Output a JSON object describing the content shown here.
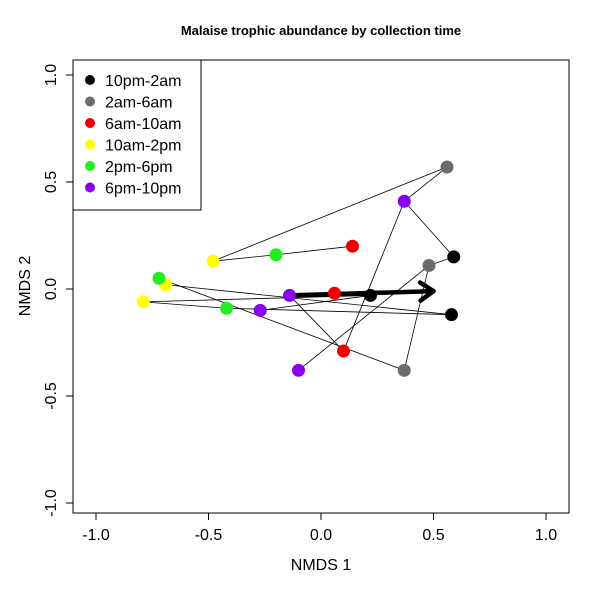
{
  "chart_data": {
    "type": "scatter",
    "title": "Malaise trophic abundance by collection time",
    "xlabel": "NMDS 1",
    "ylabel": "NMDS 2",
    "xlim": [
      -1.0,
      1.0
    ],
    "ylim": [
      -1.0,
      1.0
    ],
    "xticks": [
      -1.0,
      -0.5,
      0.0,
      0.5,
      1.0
    ],
    "yticks": [
      -1.0,
      -0.5,
      0.0,
      0.5,
      1.0
    ],
    "xtick_labels": [
      "-1.0",
      "-0.5",
      "0.0",
      "0.5",
      "1.0"
    ],
    "ytick_labels": [
      "-1.0",
      "-0.5",
      "0.0",
      "0.5",
      "1.0"
    ],
    "grid": false,
    "legend_position": "top-left",
    "series": [
      {
        "name": "10pm-2am",
        "color": "#000000",
        "points": [
          [
            0.59,
            0.15
          ],
          [
            0.58,
            -0.12
          ],
          [
            0.22,
            -0.03
          ]
        ]
      },
      {
        "name": "2am-6am",
        "color": "#6b6b6b",
        "points": [
          [
            0.56,
            0.57
          ],
          [
            0.48,
            0.11
          ],
          [
            0.37,
            -0.38
          ]
        ]
      },
      {
        "name": "6am-10am",
        "color": "#ee0000",
        "points": [
          [
            0.14,
            0.2
          ],
          [
            0.06,
            -0.02
          ],
          [
            0.1,
            -0.29
          ]
        ]
      },
      {
        "name": "10am-2pm",
        "color": "#ffff00",
        "points": [
          [
            -0.48,
            0.13
          ],
          [
            -0.69,
            0.02
          ],
          [
            -0.79,
            -0.06
          ]
        ]
      },
      {
        "name": "2pm-6pm",
        "color": "#22ee22",
        "points": [
          [
            -0.2,
            0.16
          ],
          [
            -0.72,
            0.05
          ],
          [
            -0.42,
            -0.09
          ]
        ]
      },
      {
        "name": "6pm-10pm",
        "color": "#8800ee",
        "points": [
          [
            0.37,
            0.41
          ],
          [
            -0.14,
            -0.03
          ],
          [
            -0.27,
            -0.1
          ],
          [
            -0.1,
            -0.38
          ]
        ]
      }
    ],
    "connections": [
      [
        [
          -0.48,
          0.13
        ],
        [
          -0.2,
          0.16
        ]
      ],
      [
        [
          -0.2,
          0.16
        ],
        [
          0.14,
          0.2
        ]
      ],
      [
        [
          -0.48,
          0.13
        ],
        [
          0.56,
          0.57
        ]
      ],
      [
        [
          0.56,
          0.57
        ],
        [
          0.37,
          0.41
        ]
      ],
      [
        [
          0.37,
          0.41
        ],
        [
          0.59,
          0.15
        ]
      ],
      [
        [
          0.59,
          0.15
        ],
        [
          0.48,
          0.11
        ]
      ],
      [
        [
          0.48,
          0.11
        ],
        [
          0.37,
          -0.38
        ]
      ],
      [
        [
          0.37,
          -0.38
        ],
        [
          -0.72,
          0.05
        ]
      ],
      [
        [
          -0.72,
          0.05
        ],
        [
          -0.69,
          0.02
        ]
      ],
      [
        [
          -0.69,
          0.02
        ],
        [
          0.58,
          -0.12
        ]
      ],
      [
        [
          0.58,
          -0.12
        ],
        [
          -0.42,
          -0.09
        ]
      ],
      [
        [
          -0.42,
          -0.09
        ],
        [
          -0.79,
          -0.06
        ]
      ],
      [
        [
          -0.79,
          -0.06
        ],
        [
          0.22,
          -0.03
        ]
      ],
      [
        [
          0.22,
          -0.03
        ],
        [
          -0.27,
          -0.1
        ]
      ],
      [
        [
          0.37,
          0.41
        ],
        [
          0.1,
          -0.29
        ]
      ],
      [
        [
          0.1,
          -0.29
        ],
        [
          -0.14,
          -0.03
        ]
      ],
      [
        [
          -0.1,
          -0.38
        ],
        [
          0.48,
          0.11
        ]
      ]
    ],
    "arrow": {
      "from": [
        -0.14,
        -0.03
      ],
      "to": [
        0.5,
        -0.01
      ]
    }
  }
}
